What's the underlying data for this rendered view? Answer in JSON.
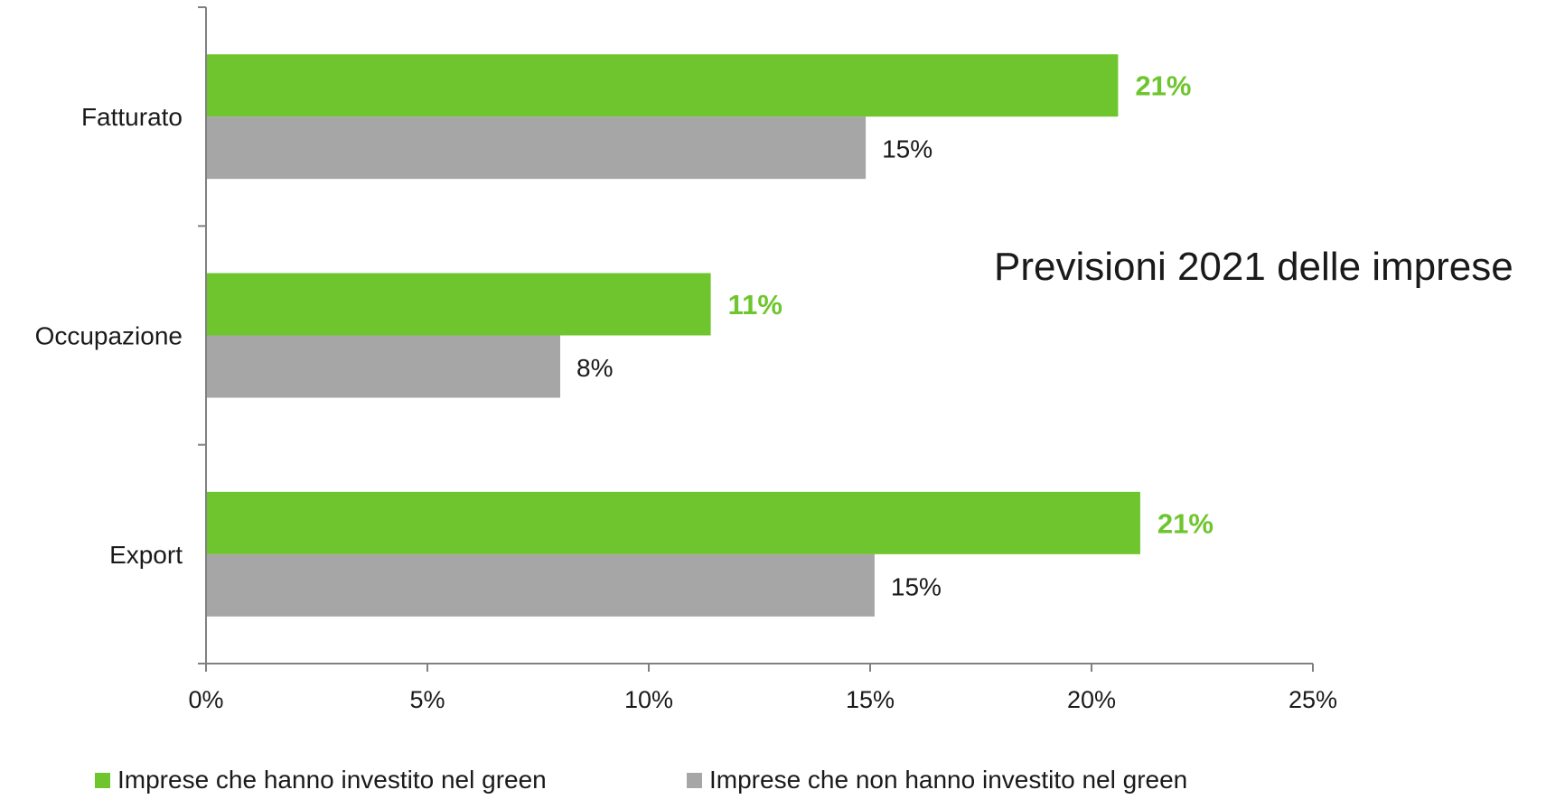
{
  "chart_data": {
    "type": "bar",
    "orientation": "horizontal",
    "title": "Previsioni 2021 delle imprese",
    "categories": [
      "Fatturato",
      "Occupazione",
      "Export"
    ],
    "series": [
      {
        "name": "Imprese che hanno investito nel green",
        "values": [
          20.6,
          11.4,
          21.1
        ],
        "labels": [
          "21%",
          "11%",
          "21%"
        ],
        "color": "#6ec52d"
      },
      {
        "name": "Imprese che non hanno investito nel green",
        "values": [
          14.9,
          8.0,
          15.1
        ],
        "labels": [
          "15%",
          "8%",
          "15%"
        ],
        "color": "#a6a6a6"
      }
    ],
    "xlim": [
      0,
      25
    ],
    "xticks": [
      "0%",
      "5%",
      "10%",
      "15%",
      "20%",
      "25%"
    ],
    "xlabel": "",
    "ylabel": "",
    "grid": false,
    "legend_position": "bottom"
  }
}
